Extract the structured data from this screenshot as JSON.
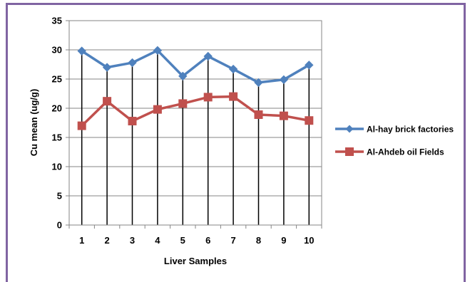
{
  "chart_data": {
    "type": "line",
    "title": "",
    "xlabel": "Liver Samples",
    "ylabel": "Cu mean (ug/g)",
    "ylim": [
      0,
      35
    ],
    "yticks": [
      "0",
      "5",
      "10",
      "15",
      "20",
      "25",
      "30",
      "35"
    ],
    "categories": [
      "1",
      "2",
      "3",
      "4",
      "5",
      "6",
      "7",
      "8",
      "9",
      "10"
    ],
    "grid": "horizontal",
    "legend_position": "right",
    "series": [
      {
        "name": "Al-hay brick factories",
        "color": "#4f81bd",
        "marker": "diamond",
        "values": [
          29.8,
          27.0,
          27.8,
          29.9,
          25.5,
          28.9,
          26.7,
          24.4,
          24.9,
          27.4
        ]
      },
      {
        "name": "Al-Ahdeb oil Fields",
        "color": "#c0504d",
        "marker": "square",
        "values": [
          17.0,
          21.2,
          17.8,
          19.8,
          20.8,
          21.9,
          22.0,
          18.9,
          18.7,
          17.9
        ]
      }
    ]
  }
}
